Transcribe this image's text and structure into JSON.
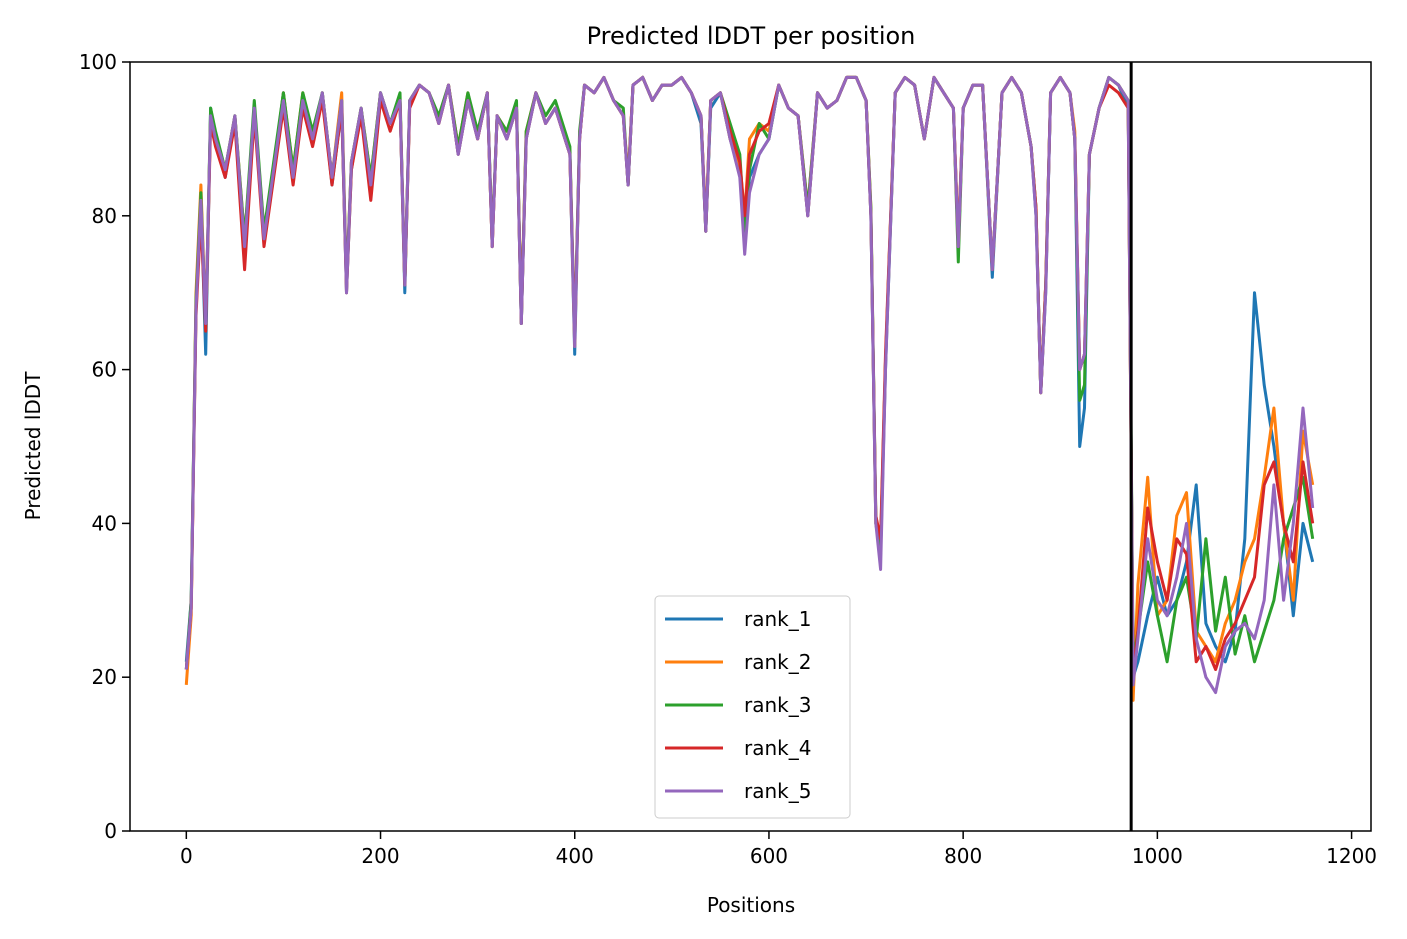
{
  "chart_data": {
    "type": "line",
    "title": "Predicted lDDT per position",
    "xlabel": "Positions",
    "ylabel": "Predicted lDDT",
    "xlim": [
      -58,
      1220
    ],
    "ylim": [
      0,
      100
    ],
    "xticks": [
      0,
      200,
      400,
      600,
      800,
      1000,
      1200
    ],
    "yticks": [
      0,
      20,
      40,
      60,
      80,
      100
    ],
    "grid": false,
    "legend": "lower-center",
    "vline": {
      "x": 973,
      "color": "#000000"
    },
    "x": [
      0,
      5,
      10,
      15,
      20,
      25,
      30,
      40,
      50,
      60,
      70,
      80,
      90,
      100,
      110,
      120,
      130,
      140,
      150,
      160,
      165,
      170,
      180,
      190,
      200,
      210,
      220,
      225,
      230,
      240,
      250,
      260,
      270,
      280,
      290,
      300,
      310,
      315,
      320,
      330,
      340,
      345,
      350,
      360,
      370,
      380,
      390,
      395,
      400,
      405,
      410,
      420,
      430,
      440,
      450,
      455,
      460,
      470,
      480,
      490,
      500,
      510,
      520,
      530,
      535,
      540,
      550,
      560,
      570,
      575,
      580,
      590,
      600,
      610,
      620,
      630,
      640,
      650,
      660,
      670,
      680,
      690,
      700,
      705,
      710,
      715,
      720,
      730,
      740,
      750,
      760,
      770,
      780,
      790,
      795,
      800,
      810,
      820,
      830,
      840,
      850,
      860,
      870,
      875,
      880,
      885,
      890,
      900,
      910,
      915,
      920,
      925,
      930,
      940,
      950,
      960,
      970,
      975,
      980,
      990,
      1000,
      1010,
      1020,
      1030,
      1040,
      1050,
      1060,
      1070,
      1080,
      1090,
      1100,
      1110,
      1120,
      1130,
      1140,
      1150,
      1160
    ],
    "series": [
      {
        "name": "rank_1",
        "color": "#1f77b4",
        "values": [
          22,
          30,
          68,
          82,
          62,
          94,
          90,
          85,
          93,
          75,
          94,
          77,
          86,
          96,
          85,
          95,
          90,
          96,
          84,
          94,
          70,
          86,
          94,
          84,
          96,
          92,
          95,
          70,
          95,
          97,
          96,
          92,
          97,
          88,
          95,
          90,
          96,
          76,
          93,
          90,
          94,
          66,
          90,
          96,
          92,
          94,
          90,
          88,
          62,
          90,
          97,
          96,
          98,
          95,
          93,
          84,
          97,
          98,
          95,
          97,
          97,
          98,
          96,
          92,
          78,
          94,
          96,
          90,
          86,
          78,
          85,
          88,
          90,
          97,
          94,
          93,
          80,
          96,
          94,
          95,
          98,
          98,
          95,
          80,
          40,
          36,
          60,
          96,
          98,
          97,
          90,
          98,
          96,
          94,
          76,
          94,
          97,
          97,
          72,
          96,
          98,
          96,
          89,
          80,
          57,
          70,
          96,
          98,
          96,
          90,
          50,
          55,
          88,
          94,
          98,
          97,
          94,
          20,
          22,
          28,
          33,
          28,
          30,
          35,
          45,
          27,
          24,
          22,
          26,
          38,
          70,
          58,
          50,
          40,
          28,
          40,
          35
        ]
      },
      {
        "name": "rank_2",
        "color": "#ff7f0e",
        "values": [
          19,
          28,
          70,
          84,
          66,
          93,
          90,
          86,
          93,
          77,
          94,
          78,
          86,
          96,
          86,
          96,
          90,
          96,
          85,
          96,
          71,
          87,
          94,
          85,
          96,
          92,
          95,
          71,
          95,
          97,
          96,
          92,
          97,
          89,
          96,
          90,
          96,
          76,
          93,
          91,
          94,
          67,
          91,
          96,
          92,
          94,
          90,
          88,
          63,
          90,
          97,
          96,
          98,
          95,
          93,
          85,
          97,
          98,
          95,
          97,
          97,
          98,
          96,
          93,
          79,
          95,
          96,
          90,
          86,
          80,
          90,
          92,
          91,
          97,
          94,
          93,
          81,
          96,
          94,
          95,
          98,
          98,
          95,
          81,
          40,
          37,
          61,
          96,
          98,
          97,
          90,
          98,
          96,
          94,
          77,
          94,
          97,
          97,
          73,
          96,
          98,
          96,
          89,
          81,
          57,
          71,
          96,
          98,
          96,
          91,
          60,
          62,
          88,
          94,
          98,
          97,
          95,
          17,
          32,
          46,
          28,
          30,
          41,
          44,
          26,
          24,
          22,
          27,
          30,
          35,
          38,
          46,
          55,
          40,
          30,
          52,
          45
        ]
      },
      {
        "name": "rank_3",
        "color": "#2ca02c",
        "values": [
          21,
          30,
          69,
          83,
          65,
          94,
          91,
          86,
          93,
          77,
          95,
          78,
          87,
          96,
          86,
          96,
          91,
          96,
          85,
          95,
          71,
          87,
          94,
          85,
          96,
          92,
          96,
          71,
          95,
          97,
          96,
          93,
          97,
          89,
          96,
          91,
          96,
          77,
          93,
          91,
          95,
          66,
          91,
          96,
          93,
          95,
          91,
          89,
          64,
          91,
          97,
          96,
          98,
          95,
          94,
          84,
          97,
          98,
          95,
          97,
          97,
          98,
          96,
          93,
          78,
          95,
          96,
          92,
          88,
          78,
          86,
          92,
          90,
          97,
          94,
          93,
          81,
          96,
          94,
          95,
          98,
          98,
          95,
          81,
          41,
          37,
          61,
          96,
          98,
          97,
          90,
          98,
          96,
          94,
          74,
          94,
          97,
          97,
          73,
          96,
          98,
          96,
          89,
          81,
          57,
          71,
          96,
          98,
          96,
          90,
          56,
          58,
          88,
          94,
          98,
          97,
          95,
          22,
          26,
          35,
          28,
          22,
          30,
          33,
          25,
          38,
          26,
          33,
          23,
          28,
          22,
          26,
          30,
          38,
          42,
          46,
          38
        ]
      },
      {
        "name": "rank_4",
        "color": "#d62728",
        "values": [
          21,
          29,
          67,
          80,
          65,
          92,
          89,
          85,
          92,
          73,
          93,
          76,
          85,
          94,
          84,
          94,
          89,
          95,
          84,
          94,
          70,
          86,
          93,
          82,
          95,
          91,
          95,
          71,
          94,
          97,
          96,
          92,
          97,
          88,
          95,
          90,
          96,
          76,
          93,
          90,
          94,
          66,
          90,
          96,
          92,
          94,
          90,
          88,
          64,
          90,
          97,
          96,
          98,
          95,
          93,
          84,
          97,
          98,
          95,
          97,
          97,
          98,
          96,
          93,
          78,
          95,
          96,
          91,
          87,
          80,
          88,
          91,
          92,
          97,
          94,
          93,
          80,
          96,
          94,
          95,
          98,
          98,
          95,
          80,
          41,
          38,
          62,
          96,
          98,
          97,
          90,
          98,
          96,
          94,
          76,
          94,
          97,
          97,
          73,
          96,
          98,
          96,
          89,
          81,
          57,
          71,
          96,
          98,
          96,
          90,
          60,
          62,
          88,
          94,
          97,
          96,
          94,
          20,
          26,
          42,
          35,
          30,
          38,
          36,
          22,
          24,
          21,
          25,
          27,
          30,
          33,
          45,
          48,
          40,
          35,
          48,
          40
        ]
      },
      {
        "name": "rank_5",
        "color": "#9467bd",
        "values": [
          21,
          29,
          68,
          82,
          66,
          93,
          90,
          86,
          93,
          76,
          94,
          77,
          86,
          95,
          85,
          95,
          90,
          96,
          85,
          95,
          70,
          87,
          94,
          84,
          96,
          92,
          95,
          71,
          95,
          97,
          96,
          92,
          97,
          88,
          95,
          90,
          96,
          76,
          93,
          90,
          94,
          66,
          90,
          96,
          92,
          94,
          90,
          88,
          63,
          90,
          97,
          96,
          98,
          95,
          93,
          84,
          97,
          98,
          95,
          97,
          97,
          98,
          96,
          93,
          78,
          95,
          96,
          90,
          85,
          75,
          83,
          88,
          90,
          97,
          94,
          93,
          80,
          96,
          94,
          95,
          98,
          98,
          95,
          80,
          40,
          34,
          60,
          96,
          98,
          97,
          90,
          98,
          96,
          94,
          76,
          94,
          97,
          97,
          73,
          96,
          98,
          96,
          89,
          80,
          57,
          70,
          96,
          98,
          96,
          90,
          60,
          62,
          88,
          94,
          98,
          97,
          95,
          19,
          25,
          38,
          30,
          28,
          33,
          40,
          25,
          20,
          18,
          24,
          26,
          27,
          25,
          30,
          45,
          30,
          40,
          55,
          42
        ]
      }
    ]
  }
}
